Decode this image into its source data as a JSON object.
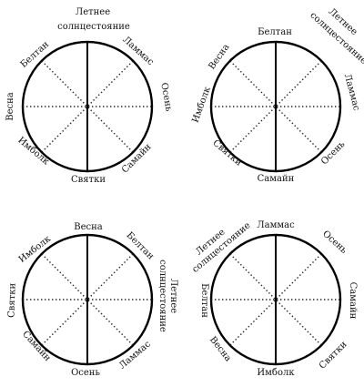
{
  "wheels": [
    {
      "name": "wheel-1",
      "labels": [
        "Летнее",
        "солнцестояние",
        "Ламмас",
        "Осень",
        "Самайн",
        "Святки",
        "Имболк",
        "Весна",
        "Белтан"
      ]
    },
    {
      "name": "wheel-2",
      "labels": [
        "Белтан",
        "Летнее",
        "солнцестояние",
        "Ламмас",
        "Осень",
        "Самайн",
        "Святки",
        "Имболк",
        "Весна"
      ]
    },
    {
      "name": "wheel-3",
      "labels": [
        "Весна",
        "Белтан",
        "Летнее",
        "солнцестояние",
        "Ламмас",
        "Осень",
        "Самайн",
        "Святки",
        "Имболк"
      ]
    },
    {
      "name": "wheel-4",
      "labels": [
        "Ламмас",
        "Осень",
        "Самайн",
        "Святки",
        "Имболк",
        "Весна",
        "Белтан",
        "Летнее",
        "солнцестояние"
      ]
    }
  ]
}
